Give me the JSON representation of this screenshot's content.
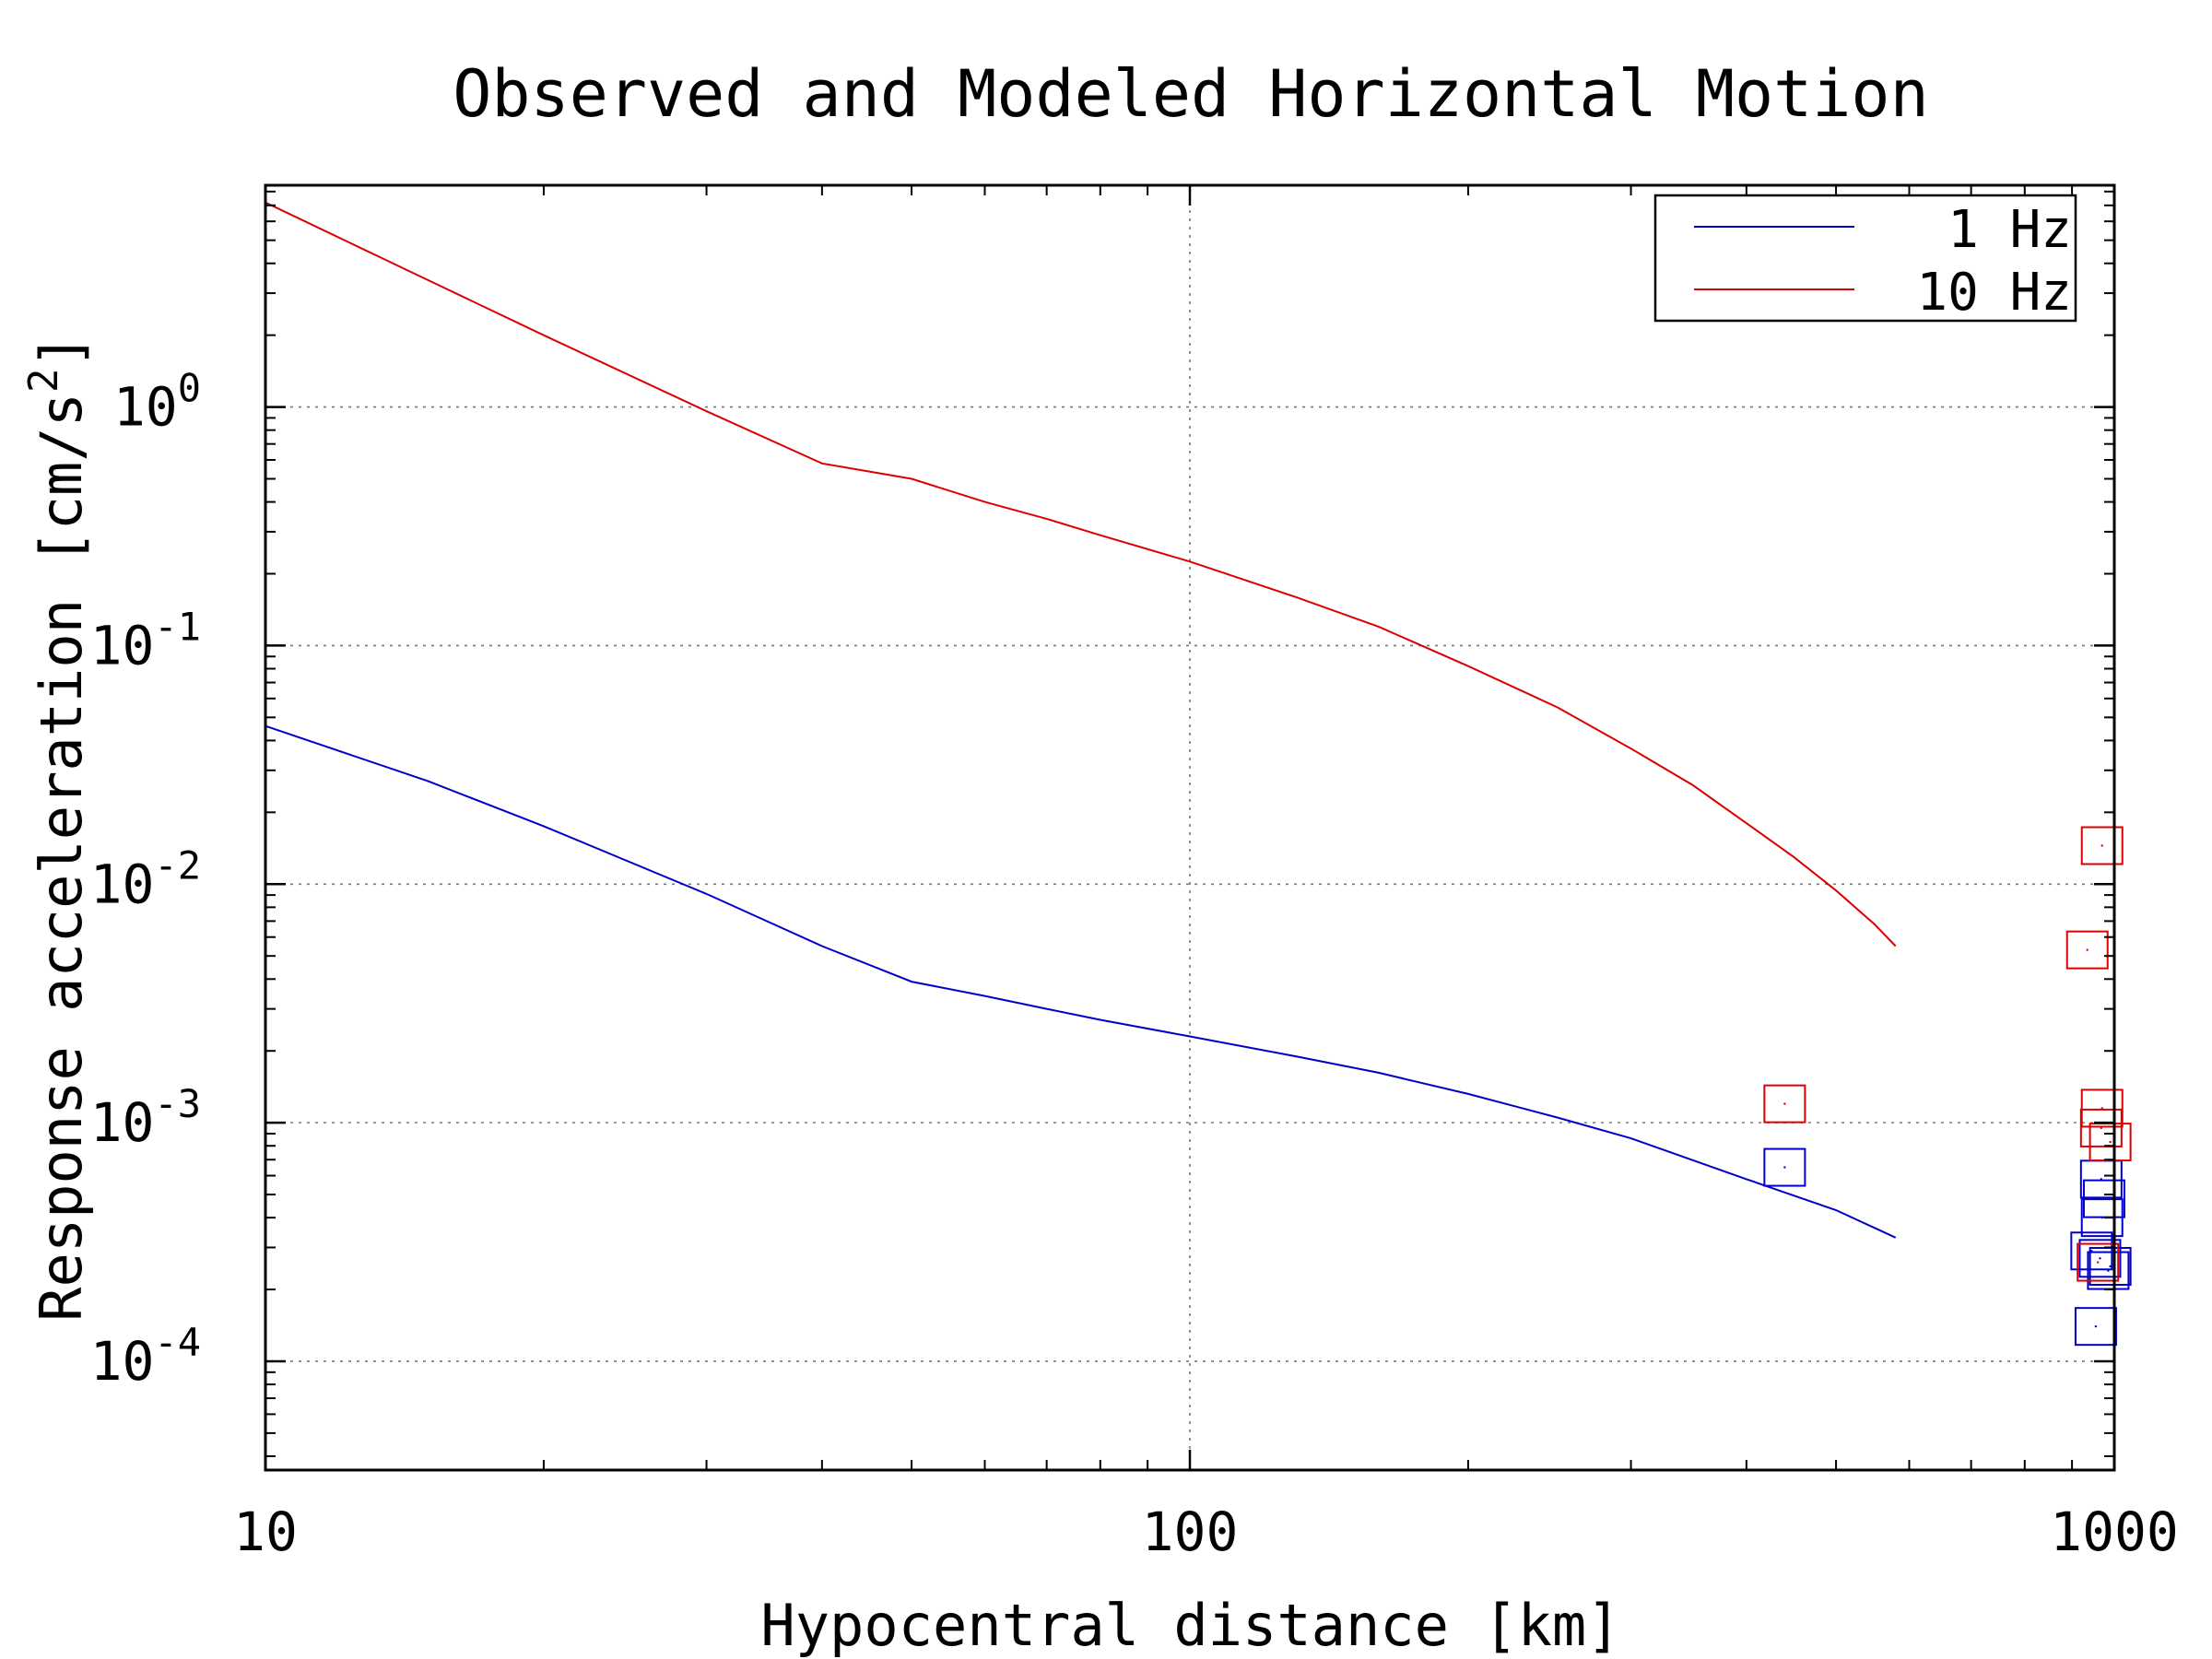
{
  "chart_data": {
    "type": "line",
    "title": "Observed and Modeled Horizontal Motion",
    "xlabel": "Hypocentral distance [km]",
    "ylabel_main": "Response acceleration [cm/s",
    "ylabel_sup": "2",
    "ylabel_close": "]",
    "xscale": "log",
    "yscale": "log",
    "xlim": [
      10,
      1000
    ],
    "ylim": [
      3.5e-05,
      8.5
    ],
    "grid": true,
    "legend_position": "top-right",
    "x_ticks": [
      {
        "value": 10,
        "label": "10"
      },
      {
        "value": 100,
        "label": "100"
      },
      {
        "value": 1000,
        "label": "1000"
      }
    ],
    "y_ticks": [
      {
        "value": 1,
        "base": "10",
        "exp": "0"
      },
      {
        "value": 0.1,
        "base": "10",
        "exp": "-1"
      },
      {
        "value": 0.01,
        "base": "10",
        "exp": "-2"
      },
      {
        "value": 0.001,
        "base": "10",
        "exp": "-3"
      },
      {
        "value": 0.0001,
        "base": "10",
        "exp": "-4"
      }
    ],
    "series": [
      {
        "name": "1 Hz",
        "color": "#0000cc",
        "line": {
          "x": [
            10,
            15,
            20,
            30,
            40,
            50,
            60,
            70,
            80,
            100,
            130,
            160,
            200,
            250,
            300,
            400,
            500,
            580
          ],
          "y": [
            0.046,
            0.027,
            0.0175,
            0.0091,
            0.0055,
            0.0039,
            0.0034,
            0.003,
            0.0027,
            0.0023,
            0.0019,
            0.00162,
            0.00132,
            0.00105,
            0.00086,
            0.00058,
            0.00043,
            0.00033
          ]
        },
        "observed": {
          "x": [
            440,
            968,
            975,
            970,
            945,
            990,
            965,
            985,
            955
          ],
          "y": [
            0.00065,
            0.00058,
            0.00048,
            0.0004,
            0.00029,
            0.00025,
            0.00027,
            0.00024,
            0.00014
          ]
        }
      },
      {
        "name": "10 Hz",
        "color": "#dd0000",
        "line": {
          "x": [
            10,
            15,
            20,
            30,
            40,
            50,
            60,
            70,
            80,
            100,
            130,
            160,
            200,
            250,
            300,
            350,
            400,
            450,
            500,
            550,
            580
          ],
          "y": [
            7.2,
            3.4,
            2.0,
            0.96,
            0.58,
            0.5,
            0.4,
            0.34,
            0.29,
            0.225,
            0.16,
            0.12,
            0.082,
            0.055,
            0.037,
            0.026,
            0.018,
            0.013,
            0.0094,
            0.0068,
            0.0055
          ]
        },
        "observed": {
          "x": [
            440,
            970,
            935,
            970,
            968,
            990,
            960
          ],
          "y": [
            0.0012,
            0.0145,
            0.0053,
            0.00115,
            0.00095,
            0.00083,
            0.00026
          ]
        }
      }
    ]
  }
}
